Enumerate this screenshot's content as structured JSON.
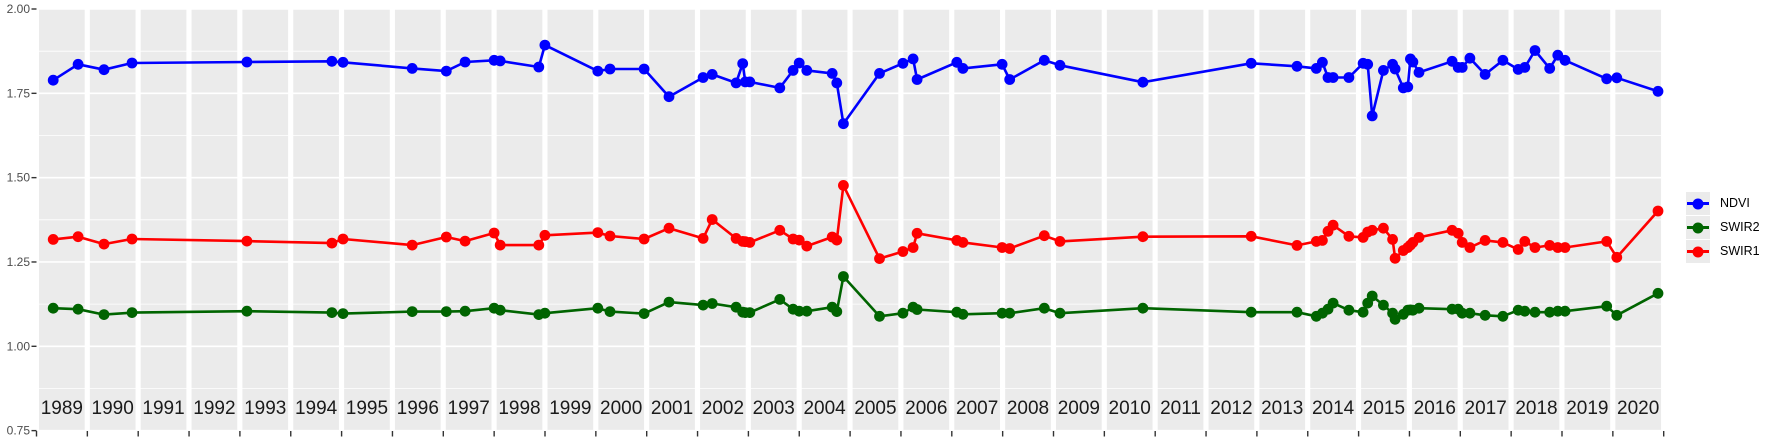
{
  "figure": {
    "background": "#ffffff",
    "panel_background": "#ebebeb",
    "gridline_color": "#ffffff",
    "axis_text_color": "#4d4d4d",
    "year_text_color": "#1a1a1a",
    "tick_mark_color": "#333333"
  },
  "y_axis": {
    "tick_labels": [
      "2.00",
      "1.75",
      "1.50",
      "1.25",
      "1.00",
      "0.75"
    ],
    "tick_values": [
      2.0,
      1.75,
      1.5,
      1.25,
      1.0,
      0.75
    ],
    "minor_values": [
      1.875,
      1.625,
      1.375,
      1.125,
      0.875
    ]
  },
  "x_axis": {
    "years": [
      "1989",
      "1990",
      "1991",
      "1992",
      "1993",
      "1994",
      "1995",
      "1996",
      "1997",
      "1998",
      "1999",
      "2000",
      "2001",
      "2002",
      "2003",
      "2004",
      "2005",
      "2006",
      "2007",
      "2008",
      "2009",
      "2010",
      "2011",
      "2012",
      "2013",
      "2014",
      "2015",
      "2016",
      "2017",
      "2018",
      "2019",
      "2020"
    ]
  },
  "legend": {
    "entries": [
      {
        "label": "NDVI",
        "color": "#0000ff"
      },
      {
        "label": "SWIR2",
        "color": "#006400"
      },
      {
        "label": "SWIR1",
        "color": "#ff0000"
      }
    ]
  },
  "chart_data": {
    "type": "line",
    "title": "",
    "xlabel": "",
    "ylabel": "",
    "ylim": [
      0.75,
      2.0
    ],
    "x_range_years": [
      1989,
      2020
    ],
    "grid": "on",
    "legend_position": "right",
    "x": [
      1989.23,
      1989.72,
      1990.23,
      1990.78,
      1993.04,
      1994.71,
      1994.93,
      1996.29,
      1996.96,
      1997.33,
      1997.9,
      1998.02,
      1998.78,
      1998.9,
      1999.94,
      2000.18,
      2000.85,
      2001.34,
      2002.01,
      2002.19,
      2002.66,
      2002.79,
      2002.84,
      2002.93,
      2003.52,
      2003.78,
      2003.9,
      2004.05,
      2004.55,
      2004.64,
      2004.77,
      2005.48,
      2005.94,
      2006.14,
      2006.22,
      2007.0,
      2007.12,
      2007.89,
      2008.04,
      2008.72,
      2009.03,
      2010.66,
      2012.79,
      2013.69,
      2014.07,
      2014.19,
      2014.3,
      2014.4,
      2014.71,
      2014.99,
      2015.08,
      2015.17,
      2015.39,
      2015.57,
      2015.62,
      2015.78,
      2015.87,
      2015.92,
      2015.97,
      2016.09,
      2016.74,
      2016.86,
      2016.94,
      2017.09,
      2017.39,
      2017.74,
      2018.04,
      2018.17,
      2018.37,
      2018.66,
      2018.82,
      2018.96,
      2019.78,
      2019.98,
      2020.79
    ],
    "series": [
      {
        "name": "NDVI",
        "color": "#0000ff",
        "values": [
          1.789,
          1.836,
          1.82,
          1.84,
          1.843,
          1.845,
          1.842,
          1.824,
          1.816,
          1.843,
          1.848,
          1.846,
          1.828,
          1.893,
          1.816,
          1.822,
          1.822,
          1.74,
          1.797,
          1.806,
          1.781,
          1.838,
          1.784,
          1.784,
          1.766,
          1.818,
          1.84,
          1.818,
          1.809,
          1.781,
          1.66,
          1.809,
          1.839,
          1.852,
          1.791,
          1.842,
          1.824,
          1.836,
          1.791,
          1.848,
          1.833,
          1.783,
          1.839,
          1.83,
          1.824,
          1.842,
          1.797,
          1.797,
          1.797,
          1.839,
          1.836,
          1.683,
          1.818,
          1.836,
          1.822,
          1.766,
          1.769,
          1.852,
          1.843,
          1.812,
          1.845,
          1.827,
          1.827,
          1.854,
          1.806,
          1.848,
          1.821,
          1.827,
          1.877,
          1.824,
          1.863,
          1.848,
          1.793,
          1.796,
          1.756
        ]
      },
      {
        "name": "SWIR2",
        "color": "#006400",
        "values": [
          1.113,
          1.11,
          1.094,
          1.1,
          1.104,
          1.1,
          1.097,
          1.103,
          1.103,
          1.104,
          1.113,
          1.107,
          1.094,
          1.098,
          1.113,
          1.103,
          1.097,
          1.131,
          1.122,
          1.127,
          1.116,
          1.101,
          1.1,
          1.1,
          1.139,
          1.11,
          1.104,
          1.104,
          1.116,
          1.103,
          1.207,
          1.089,
          1.098,
          1.116,
          1.109,
          1.101,
          1.095,
          1.098,
          1.098,
          1.113,
          1.098,
          1.113,
          1.101,
          1.101,
          1.089,
          1.098,
          1.11,
          1.128,
          1.107,
          1.101,
          1.128,
          1.149,
          1.122,
          1.098,
          1.08,
          1.095,
          1.107,
          1.108,
          1.107,
          1.113,
          1.11,
          1.11,
          1.098,
          1.098,
          1.092,
          1.089,
          1.107,
          1.104,
          1.101,
          1.101,
          1.104,
          1.104,
          1.119,
          1.092,
          1.157
        ]
      },
      {
        "name": "SWIR1",
        "color": "#ff0000",
        "values": [
          1.317,
          1.325,
          1.303,
          1.318,
          1.312,
          1.306,
          1.318,
          1.3,
          1.324,
          1.312,
          1.336,
          1.3,
          1.3,
          1.329,
          1.337,
          1.327,
          1.318,
          1.35,
          1.32,
          1.376,
          1.32,
          1.311,
          1.31,
          1.308,
          1.344,
          1.318,
          1.315,
          1.297,
          1.324,
          1.315,
          1.477,
          1.26,
          1.281,
          1.293,
          1.335,
          1.314,
          1.308,
          1.293,
          1.29,
          1.328,
          1.311,
          1.325,
          1.326,
          1.299,
          1.311,
          1.314,
          1.341,
          1.359,
          1.326,
          1.323,
          1.339,
          1.344,
          1.35,
          1.317,
          1.261,
          1.284,
          1.293,
          1.3,
          1.308,
          1.323,
          1.344,
          1.335,
          1.308,
          1.293,
          1.314,
          1.308,
          1.287,
          1.311,
          1.293,
          1.299,
          1.293,
          1.293,
          1.311,
          1.264,
          1.401
        ]
      }
    ]
  }
}
